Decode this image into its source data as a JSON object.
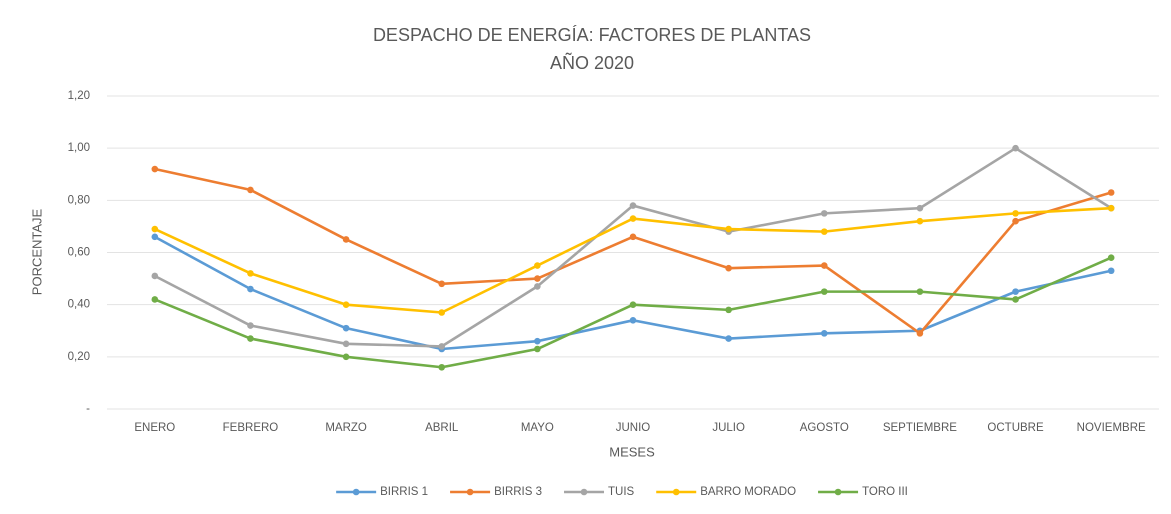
{
  "chart_data": {
    "type": "line",
    "title": [
      "DESPACHO DE ENERGÍA: FACTORES DE PLANTAS",
      "AÑO 2020"
    ],
    "x_label": "MESES",
    "y_label": "PORCENTAJE",
    "categories": [
      "ENERO",
      "FEBRERO",
      "MARZO",
      "ABRIL",
      "MAYO",
      "JUNIO",
      "JULIO",
      "AGOSTO",
      "SEPTIEMBRE",
      "OCTUBRE",
      "NOVIEMBRE"
    ],
    "series": [
      {
        "name": "BIRRIS 1",
        "color": "#5b9bd5",
        "values": [
          0.66,
          0.46,
          0.31,
          0.23,
          0.26,
          0.34,
          0.27,
          0.29,
          0.3,
          0.45,
          0.53
        ]
      },
      {
        "name": "BIRRIS 3",
        "color": "#ed7d31",
        "values": [
          0.92,
          0.84,
          0.65,
          0.48,
          0.5,
          0.66,
          0.54,
          0.55,
          0.29,
          0.72,
          0.83
        ]
      },
      {
        "name": "TUIS",
        "color": "#a5a5a5",
        "values": [
          0.51,
          0.32,
          0.25,
          0.24,
          0.47,
          0.78,
          0.68,
          0.75,
          0.77,
          1.0,
          0.77
        ]
      },
      {
        "name": "BARRO MORADO",
        "color": "#ffc000",
        "values": [
          0.69,
          0.52,
          0.4,
          0.37,
          0.55,
          0.73,
          0.69,
          0.68,
          0.72,
          0.75,
          0.77
        ]
      },
      {
        "name": "TORO III",
        "color": "#70ad47",
        "values": [
          0.42,
          0.27,
          0.2,
          0.16,
          0.23,
          0.4,
          0.38,
          0.45,
          0.45,
          0.42,
          0.58
        ]
      }
    ],
    "ylim": [
      0,
      1.2
    ],
    "yticks": [
      {
        "value": 0,
        "label": "-"
      },
      {
        "value": 0.2,
        "label": "0,20"
      },
      {
        "value": 0.4,
        "label": "0,40"
      },
      {
        "value": 0.6,
        "label": "0,60"
      },
      {
        "value": 0.8,
        "label": "0,80"
      },
      {
        "value": 1.0,
        "label": "1,00"
      },
      {
        "value": 1.2,
        "label": "1,20"
      }
    ],
    "grid": true,
    "legend": "bottom"
  }
}
